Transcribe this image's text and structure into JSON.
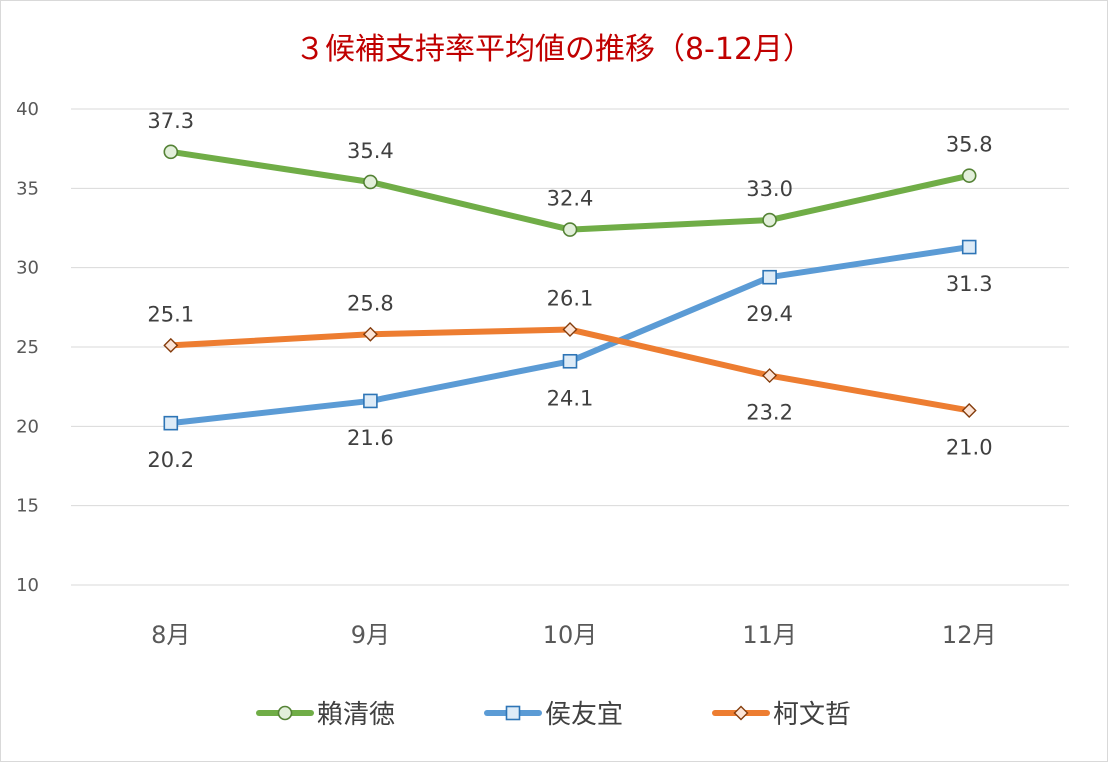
{
  "chart_data": {
    "type": "line",
    "title": "３候補支持率平均値の推移（8-12月）",
    "categories": [
      "8月",
      "9月",
      "10月",
      "11月",
      "12月"
    ],
    "ylim": [
      10,
      40
    ],
    "yticks": [
      10,
      15,
      20,
      25,
      30,
      35,
      40
    ],
    "grid": true,
    "legend_position": "bottom",
    "series": [
      {
        "name": "賴清徳",
        "values": [
          37.3,
          35.4,
          32.4,
          33.0,
          35.8
        ],
        "color": "#70ad47",
        "marker": "circle",
        "marker_fill": "#e2efda",
        "label_position": "above"
      },
      {
        "name": "侯友宜",
        "values": [
          20.2,
          21.6,
          24.1,
          29.4,
          31.3
        ],
        "color": "#5b9bd5",
        "marker": "square",
        "marker_fill": "#ddebf7",
        "label_position": "below"
      },
      {
        "name": "柯文哲",
        "values": [
          25.1,
          25.8,
          26.1,
          23.2,
          21.0
        ],
        "color": "#ed7d31",
        "marker": "diamond",
        "marker_fill": "#fce4d6",
        "label_position": "mixed"
      }
    ],
    "title_color": "#c00000"
  }
}
